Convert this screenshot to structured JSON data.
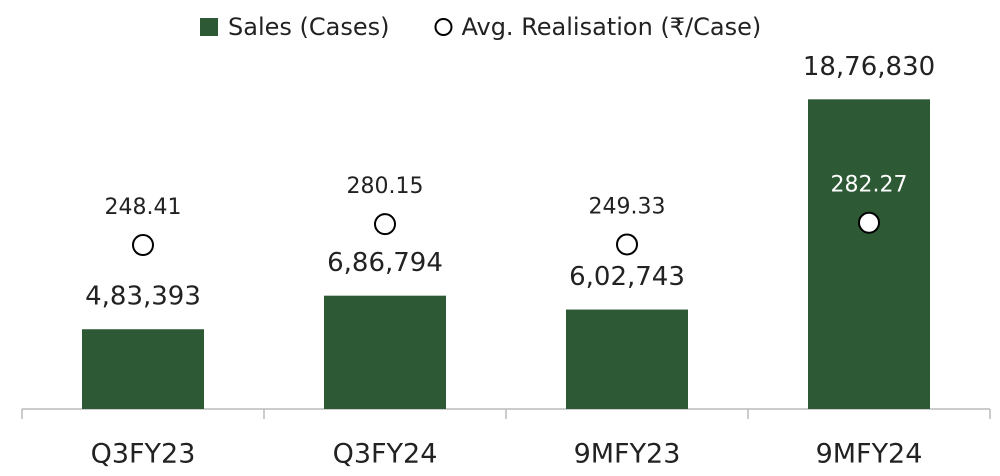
{
  "chart_data": {
    "type": "bar",
    "categories": [
      "Q3FY23",
      "Q3FY24",
      "9MFY23",
      "9MFY24"
    ],
    "series": [
      {
        "name": "Sales (Cases)",
        "type": "bar",
        "color": "#2d5a35",
        "values": [
          483393,
          686794,
          602743,
          1876830
        ],
        "value_labels": [
          "4,83,393",
          "6,86,794",
          "6,02,743",
          "18,76,830"
        ]
      },
      {
        "name": "Avg. Realisation (₹/Case)",
        "type": "scatter",
        "axis": "y2",
        "color": "#ffffff",
        "values": [
          248.41,
          280.15,
          249.33,
          282.27
        ]
      }
    ],
    "ylim": [
      0,
      2000000
    ],
    "y2lim": [
      0,
      500
    ],
    "legend": "top"
  }
}
